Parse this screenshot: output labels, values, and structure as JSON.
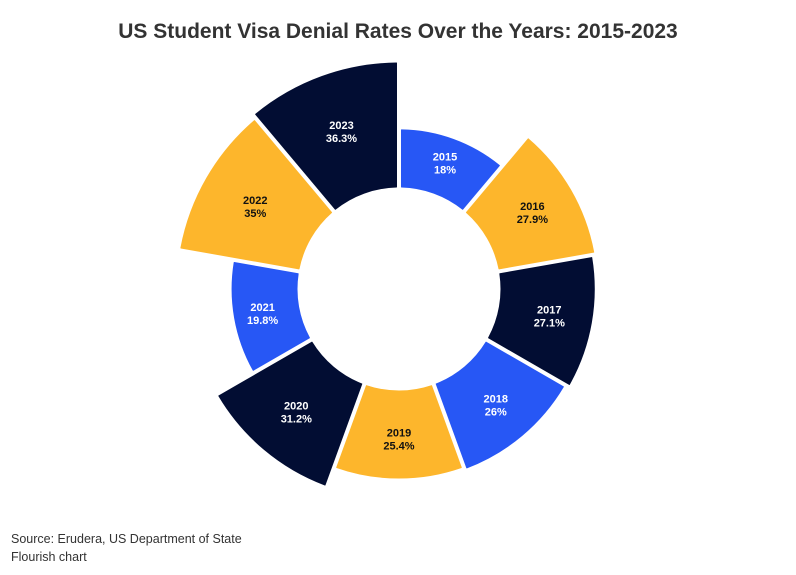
{
  "title": "US Student Visa Denial Rates Over the Years: 2015-2023",
  "footer": {
    "source": "Source: Erudera, US Department of State",
    "credit": "Flourish chart"
  },
  "colors": {
    "blue": "#2757f5",
    "yellow": "#fdb62c",
    "navy": "#020d33",
    "light_text": "#ffffff",
    "dark_text": "#111111"
  },
  "chart_data": {
    "type": "pie",
    "variant": "radial-donut",
    "title": "US Student Visa Denial Rates Over the Years: 2015-2023",
    "unit": "%",
    "categories": [
      "2015",
      "2016",
      "2017",
      "2018",
      "2019",
      "2020",
      "2021",
      "2022",
      "2023"
    ],
    "values": [
      18,
      27.9,
      27.1,
      26,
      25.4,
      31.2,
      19.8,
      35,
      36.3
    ],
    "labels": [
      "18%",
      "27.9%",
      "27.1%",
      "26%",
      "25.4%",
      "31.2%",
      "19.8%",
      "35%",
      "36.3%"
    ],
    "segment_colors": [
      "blue",
      "yellow",
      "navy",
      "blue",
      "yellow",
      "navy",
      "blue",
      "yellow",
      "navy"
    ],
    "legend": "none"
  }
}
